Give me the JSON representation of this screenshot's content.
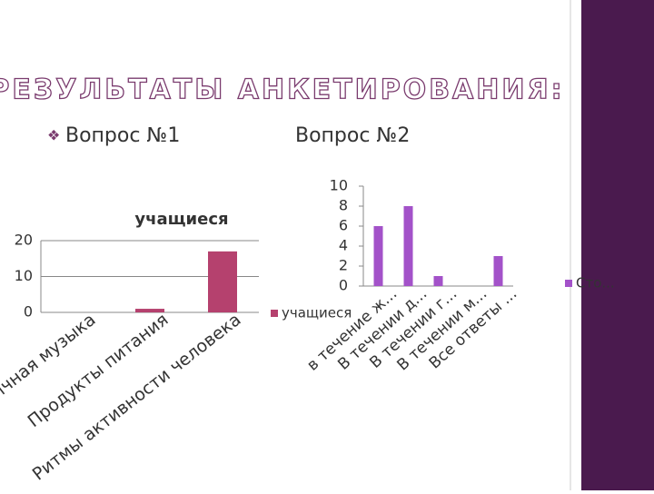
{
  "slide": {
    "title": "РЕЗУЛЬТАТЫ АНКЕТИРОВАНИЯ:",
    "bullet_1": "Вопрос №1",
    "bullet_2": "Вопрос №2"
  },
  "chart_data": [
    {
      "type": "bar",
      "title": "учащиеся",
      "categories": [
        "Ритмичная музыка",
        "Продукты питания",
        "Ритмы активности человека"
      ],
      "series": [
        {
          "name": "учащиеся",
          "color": "#b5416e",
          "values": [
            0,
            1,
            17
          ]
        }
      ],
      "ylim": [
        0,
        20
      ],
      "yticks": [
        0,
        10,
        20
      ],
      "grid": true
    },
    {
      "type": "bar",
      "categories": [
        "в течение ж...",
        "В течении д...",
        "В течении г...",
        "В течении м...",
        "Все ответы ..."
      ],
      "series": [
        {
          "name": "Сто...",
          "color": "#a352c9",
          "values": [
            6,
            8,
            1,
            0,
            3
          ]
        }
      ],
      "ylim": [
        0,
        10
      ],
      "yticks": [
        0,
        2,
        4,
        6,
        8,
        10
      ],
      "grid": false
    }
  ]
}
